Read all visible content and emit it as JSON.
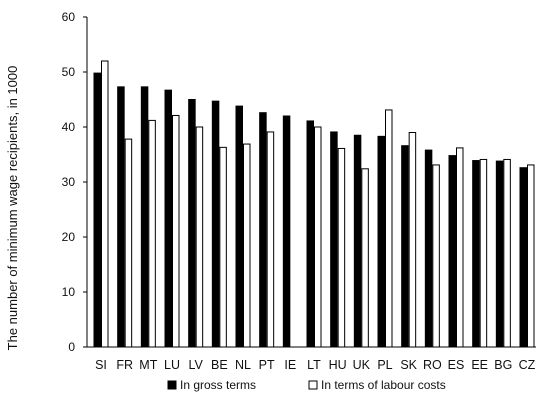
{
  "chart_data": {
    "type": "bar",
    "ylabel": "The number of minimum wage recipients, in 1000",
    "xlabel": "",
    "ylim": [
      0,
      60
    ],
    "yticks": [
      0,
      10,
      20,
      30,
      40,
      50,
      60
    ],
    "categories": [
      "SI",
      "FR",
      "MT",
      "LU",
      "LV",
      "BE",
      "NL",
      "PT",
      "IE",
      "LT",
      "HU",
      "UK",
      "PL",
      "SK",
      "RO",
      "ES",
      "EE",
      "BG",
      "CZ"
    ],
    "series": [
      {
        "name": "In gross terms",
        "color": "#000000",
        "values": [
          49.8,
          47.3,
          47.3,
          46.7,
          45.0,
          44.7,
          43.8,
          42.6,
          42.0,
          41.1,
          39.1,
          38.5,
          38.3,
          36.6,
          35.8,
          34.8,
          33.9,
          33.8,
          32.6
        ]
      },
      {
        "name": "In terms of labour costs",
        "color": "#ffffff",
        "values": [
          52.0,
          37.8,
          41.2,
          42.1,
          40.0,
          36.3,
          36.9,
          39.1,
          null,
          40.0,
          36.1,
          32.4,
          43.1,
          39.0,
          33.1,
          36.2,
          34.1,
          34.1,
          33.1
        ]
      }
    ],
    "legend": "bottom",
    "grid": false
  }
}
